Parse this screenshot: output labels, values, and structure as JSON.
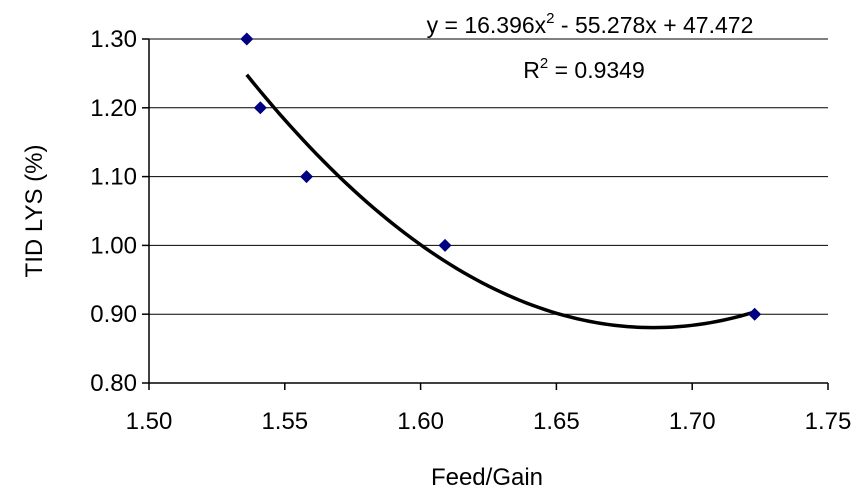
{
  "chart_data": {
    "type": "scatter",
    "xlabel": "Feed/Gain",
    "ylabel": "TID LYS (%)",
    "xlim": [
      1.5,
      1.75
    ],
    "ylim": [
      0.8,
      1.3
    ],
    "x_ticks": [
      "1.50",
      "1.55",
      "1.60",
      "1.65",
      "1.70",
      "1.75"
    ],
    "y_ticks": [
      "0.80",
      "0.90",
      "1.00",
      "1.10",
      "1.20",
      "1.30"
    ],
    "x_tick_values": [
      1.5,
      1.55,
      1.6,
      1.65,
      1.7,
      1.75
    ],
    "y_tick_values": [
      0.8,
      0.9,
      1.0,
      1.1,
      1.2,
      1.3
    ],
    "grid": "horizontal",
    "marker_color": "#000080",
    "series": [
      {
        "marker": "diamond",
        "points": [
          {
            "x": 1.536,
            "y": 1.3
          },
          {
            "x": 1.541,
            "y": 1.2
          },
          {
            "x": 1.558,
            "y": 1.1
          },
          {
            "x": 1.609,
            "y": 1.0
          },
          {
            "x": 1.723,
            "y": 0.9
          }
        ]
      }
    ],
    "trendline": {
      "type": "polynomial",
      "order": 2,
      "coefficients": [
        16.396,
        -55.278,
        47.472
      ],
      "x_range": [
        1.536,
        1.723
      ],
      "color": "#000000"
    },
    "annotations": {
      "equation_prefix": "y = 16.396x",
      "equation_exponent": "2",
      "equation_suffix": " - 55.278x + 47.472",
      "r2_prefix": "R",
      "r2_exponent": "2",
      "r2_suffix": " = 0.9349"
    }
  }
}
